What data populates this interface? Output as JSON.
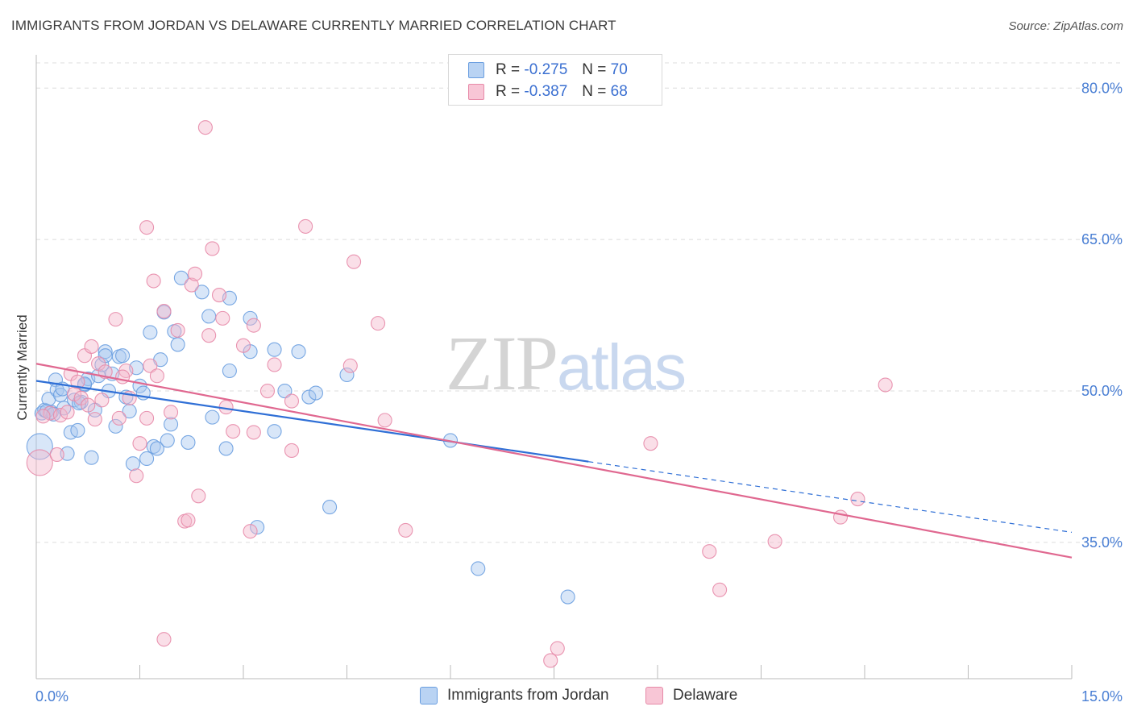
{
  "title": "IMMIGRANTS FROM JORDAN VS DELAWARE CURRENTLY MARRIED CORRELATION CHART",
  "source": "Source: ZipAtlas.com",
  "watermark": {
    "zip": "ZIP",
    "atlas": "atlas"
  },
  "colors": {
    "blue_fill": "#a8c8f0",
    "blue_stroke": "#6a9ee0",
    "blue_line": "#2f6fd6",
    "pink_fill": "#f5b8cc",
    "pink_stroke": "#e78aa8",
    "pink_line": "#e06890",
    "grid": "#dcdcdc",
    "axis_text": "#4a7fd4"
  },
  "legend": {
    "series1": {
      "r_label": "R = ",
      "r_value": "-0.275",
      "n_label": "N = ",
      "n_value": "70"
    },
    "series2": {
      "r_label": "R = ",
      "r_value": "-0.387",
      "n_label": "N = ",
      "n_value": "68"
    }
  },
  "bottom_legend": {
    "series1": "Immigrants from Jordan",
    "series2": "Delaware"
  },
  "chart_data": {
    "type": "scatter",
    "title": "IMMIGRANTS FROM JORDAN VS DELAWARE CURRENTLY MARRIED CORRELATION CHART",
    "xlabel": "",
    "ylabel": "Currently Married",
    "xlim": [
      0,
      15
    ],
    "ylim": [
      21.5,
      82.5
    ],
    "x_ticks": [
      {
        "value": 0,
        "label": "0.0%"
      },
      {
        "value": 15,
        "label": "15.0%"
      }
    ],
    "y_ticks": [
      {
        "value": 35,
        "label": "35.0%"
      },
      {
        "value": 50,
        "label": "50.0%"
      },
      {
        "value": 65,
        "label": "65.0%"
      },
      {
        "value": 80,
        "label": "80.0%"
      }
    ],
    "series": [
      {
        "name": "Immigrants from Jordan",
        "color": "#6a9ee0",
        "trend": {
          "x0": 0,
          "y0": 51.0,
          "x1": 8.0,
          "y1": 43.0,
          "dash_to_x": 15,
          "dash_to_y": 36.0
        },
        "points": [
          {
            "x": 0.05,
            "y": 44.5,
            "s": 2
          },
          {
            "x": 0.08,
            "y": 47.8,
            "s": 1
          },
          {
            "x": 0.12,
            "y": 48.1,
            "s": 1
          },
          {
            "x": 0.18,
            "y": 49.2,
            "s": 1
          },
          {
            "x": 0.22,
            "y": 47.9,
            "s": 1
          },
          {
            "x": 0.28,
            "y": 51.1,
            "s": 1
          },
          {
            "x": 0.3,
            "y": 50.1,
            "s": 1
          },
          {
            "x": 0.35,
            "y": 49.6,
            "s": 1
          },
          {
            "x": 0.4,
            "y": 48.3,
            "s": 1
          },
          {
            "x": 0.45,
            "y": 43.8,
            "s": 1
          },
          {
            "x": 0.5,
            "y": 45.9,
            "s": 1
          },
          {
            "x": 0.55,
            "y": 49.1,
            "s": 1
          },
          {
            "x": 0.6,
            "y": 46.1,
            "s": 1
          },
          {
            "x": 0.65,
            "y": 48.9,
            "s": 1
          },
          {
            "x": 0.7,
            "y": 50.6,
            "s": 1
          },
          {
            "x": 0.75,
            "y": 51.2,
            "s": 1
          },
          {
            "x": 0.8,
            "y": 43.4,
            "s": 1
          },
          {
            "x": 0.85,
            "y": 48.1,
            "s": 1
          },
          {
            "x": 0.9,
            "y": 51.5,
            "s": 1
          },
          {
            "x": 0.95,
            "y": 52.6,
            "s": 1
          },
          {
            "x": 1.0,
            "y": 53.9,
            "s": 1
          },
          {
            "x": 1.05,
            "y": 50.0,
            "s": 1
          },
          {
            "x": 1.1,
            "y": 51.7,
            "s": 1
          },
          {
            "x": 1.15,
            "y": 46.5,
            "s": 1
          },
          {
            "x": 1.2,
            "y": 53.4,
            "s": 1
          },
          {
            "x": 1.25,
            "y": 53.5,
            "s": 1
          },
          {
            "x": 1.3,
            "y": 49.4,
            "s": 1
          },
          {
            "x": 1.35,
            "y": 48.0,
            "s": 1
          },
          {
            "x": 1.4,
            "y": 42.8,
            "s": 1
          },
          {
            "x": 1.45,
            "y": 52.3,
            "s": 1
          },
          {
            "x": 1.5,
            "y": 50.5,
            "s": 1
          },
          {
            "x": 1.55,
            "y": 49.8,
            "s": 1
          },
          {
            "x": 1.6,
            "y": 43.3,
            "s": 1
          },
          {
            "x": 1.65,
            "y": 55.8,
            "s": 1
          },
          {
            "x": 1.7,
            "y": 44.5,
            "s": 1
          },
          {
            "x": 1.75,
            "y": 44.3,
            "s": 1
          },
          {
            "x": 1.8,
            "y": 53.1,
            "s": 1
          },
          {
            "x": 1.85,
            "y": 57.8,
            "s": 1
          },
          {
            "x": 1.9,
            "y": 45.1,
            "s": 1
          },
          {
            "x": 1.95,
            "y": 46.7,
            "s": 1
          },
          {
            "x": 2.0,
            "y": 55.9,
            "s": 1
          },
          {
            "x": 2.05,
            "y": 54.6,
            "s": 1
          },
          {
            "x": 2.1,
            "y": 61.2,
            "s": 1
          },
          {
            "x": 2.2,
            "y": 44.9,
            "s": 1
          },
          {
            "x": 2.4,
            "y": 59.8,
            "s": 1
          },
          {
            "x": 2.5,
            "y": 57.4,
            "s": 1
          },
          {
            "x": 2.55,
            "y": 47.4,
            "s": 1
          },
          {
            "x": 2.8,
            "y": 52.0,
            "s": 1
          },
          {
            "x": 2.8,
            "y": 59.2,
            "s": 1
          },
          {
            "x": 3.1,
            "y": 57.2,
            "s": 1
          },
          {
            "x": 3.1,
            "y": 53.9,
            "s": 1
          },
          {
            "x": 2.75,
            "y": 44.3,
            "s": 1
          },
          {
            "x": 3.45,
            "y": 54.1,
            "s": 1
          },
          {
            "x": 3.45,
            "y": 46.0,
            "s": 1
          },
          {
            "x": 3.6,
            "y": 50.0,
            "s": 1
          },
          {
            "x": 3.8,
            "y": 53.9,
            "s": 1
          },
          {
            "x": 3.95,
            "y": 49.4,
            "s": 1
          },
          {
            "x": 4.05,
            "y": 49.8,
            "s": 1
          },
          {
            "x": 4.5,
            "y": 51.6,
            "s": 1
          },
          {
            "x": 4.25,
            "y": 38.5,
            "s": 1
          },
          {
            "x": 3.2,
            "y": 36.5,
            "s": 1
          },
          {
            "x": 6.0,
            "y": 45.1,
            "s": 1
          },
          {
            "x": 6.4,
            "y": 32.4,
            "s": 1
          },
          {
            "x": 7.7,
            "y": 29.6,
            "s": 1
          },
          {
            "x": 0.15,
            "y": 48.0,
            "s": 1
          },
          {
            "x": 0.25,
            "y": 47.7,
            "s": 1
          },
          {
            "x": 0.7,
            "y": 50.7,
            "s": 1
          },
          {
            "x": 1.0,
            "y": 53.5,
            "s": 1
          },
          {
            "x": 0.38,
            "y": 50.2,
            "s": 1
          },
          {
            "x": 0.62,
            "y": 48.8,
            "s": 1
          }
        ]
      },
      {
        "name": "Delaware",
        "color": "#e78aa8",
        "trend": {
          "x0": 0,
          "y0": 52.7,
          "x1": 15,
          "y1": 33.5
        },
        "points": [
          {
            "x": 0.05,
            "y": 42.9,
            "s": 2
          },
          {
            "x": 0.2,
            "y": 47.8,
            "s": 1
          },
          {
            "x": 0.3,
            "y": 43.7,
            "s": 1
          },
          {
            "x": 0.35,
            "y": 47.6,
            "s": 1
          },
          {
            "x": 0.45,
            "y": 47.9,
            "s": 1
          },
          {
            "x": 0.5,
            "y": 51.7,
            "s": 1
          },
          {
            "x": 0.55,
            "y": 49.7,
            "s": 1
          },
          {
            "x": 0.65,
            "y": 49.3,
            "s": 1
          },
          {
            "x": 0.7,
            "y": 53.5,
            "s": 1
          },
          {
            "x": 0.8,
            "y": 54.4,
            "s": 1
          },
          {
            "x": 0.85,
            "y": 47.2,
            "s": 1
          },
          {
            "x": 0.9,
            "y": 52.7,
            "s": 1
          },
          {
            "x": 0.95,
            "y": 49.1,
            "s": 1
          },
          {
            "x": 1.0,
            "y": 51.9,
            "s": 1
          },
          {
            "x": 1.15,
            "y": 57.1,
            "s": 1
          },
          {
            "x": 1.2,
            "y": 47.3,
            "s": 1
          },
          {
            "x": 1.3,
            "y": 52.0,
            "s": 1
          },
          {
            "x": 1.35,
            "y": 49.3,
            "s": 1
          },
          {
            "x": 1.45,
            "y": 41.6,
            "s": 1
          },
          {
            "x": 1.5,
            "y": 44.8,
            "s": 1
          },
          {
            "x": 1.6,
            "y": 66.2,
            "s": 1
          },
          {
            "x": 1.6,
            "y": 47.3,
            "s": 1
          },
          {
            "x": 1.65,
            "y": 52.5,
            "s": 1
          },
          {
            "x": 1.7,
            "y": 60.9,
            "s": 1
          },
          {
            "x": 1.75,
            "y": 51.5,
            "s": 1
          },
          {
            "x": 1.85,
            "y": 57.9,
            "s": 1
          },
          {
            "x": 1.85,
            "y": 25.4,
            "s": 1
          },
          {
            "x": 2.05,
            "y": 56.0,
            "s": 1
          },
          {
            "x": 2.15,
            "y": 37.1,
            "s": 1
          },
          {
            "x": 2.2,
            "y": 37.2,
            "s": 1
          },
          {
            "x": 2.25,
            "y": 60.5,
            "s": 1
          },
          {
            "x": 2.3,
            "y": 61.6,
            "s": 1
          },
          {
            "x": 2.35,
            "y": 39.6,
            "s": 1
          },
          {
            "x": 2.45,
            "y": 76.1,
            "s": 1
          },
          {
            "x": 2.5,
            "y": 55.5,
            "s": 1
          },
          {
            "x": 2.55,
            "y": 64.1,
            "s": 1
          },
          {
            "x": 2.65,
            "y": 59.5,
            "s": 1
          },
          {
            "x": 2.7,
            "y": 57.2,
            "s": 1
          },
          {
            "x": 2.75,
            "y": 48.4,
            "s": 1
          },
          {
            "x": 2.85,
            "y": 46.0,
            "s": 1
          },
          {
            "x": 3.0,
            "y": 54.5,
            "s": 1
          },
          {
            "x": 3.15,
            "y": 56.5,
            "s": 1
          },
          {
            "x": 3.15,
            "y": 45.9,
            "s": 1
          },
          {
            "x": 3.1,
            "y": 36.1,
            "s": 1
          },
          {
            "x": 3.35,
            "y": 50.0,
            "s": 1
          },
          {
            "x": 3.45,
            "y": 52.6,
            "s": 1
          },
          {
            "x": 3.7,
            "y": 49.0,
            "s": 1
          },
          {
            "x": 3.7,
            "y": 44.1,
            "s": 1
          },
          {
            "x": 3.9,
            "y": 66.3,
            "s": 1
          },
          {
            "x": 4.55,
            "y": 52.5,
            "s": 1
          },
          {
            "x": 4.6,
            "y": 62.8,
            "s": 1
          },
          {
            "x": 4.95,
            "y": 56.7,
            "s": 1
          },
          {
            "x": 5.05,
            "y": 47.1,
            "s": 1
          },
          {
            "x": 5.35,
            "y": 36.2,
            "s": 1
          },
          {
            "x": 7.45,
            "y": 23.3,
            "s": 1
          },
          {
            "x": 7.55,
            "y": 24.5,
            "s": 1
          },
          {
            "x": 8.9,
            "y": 44.8,
            "s": 1
          },
          {
            "x": 9.75,
            "y": 34.1,
            "s": 1
          },
          {
            "x": 9.9,
            "y": 30.3,
            "s": 1
          },
          {
            "x": 10.7,
            "y": 35.1,
            "s": 1
          },
          {
            "x": 11.65,
            "y": 37.5,
            "s": 1
          },
          {
            "x": 11.9,
            "y": 39.3,
            "s": 1
          },
          {
            "x": 12.3,
            "y": 50.6,
            "s": 1
          },
          {
            "x": 0.1,
            "y": 47.5,
            "s": 1
          },
          {
            "x": 0.6,
            "y": 50.9,
            "s": 1
          },
          {
            "x": 1.25,
            "y": 51.4,
            "s": 1
          },
          {
            "x": 0.75,
            "y": 48.6,
            "s": 1
          },
          {
            "x": 1.95,
            "y": 47.9,
            "s": 1
          }
        ]
      }
    ]
  }
}
